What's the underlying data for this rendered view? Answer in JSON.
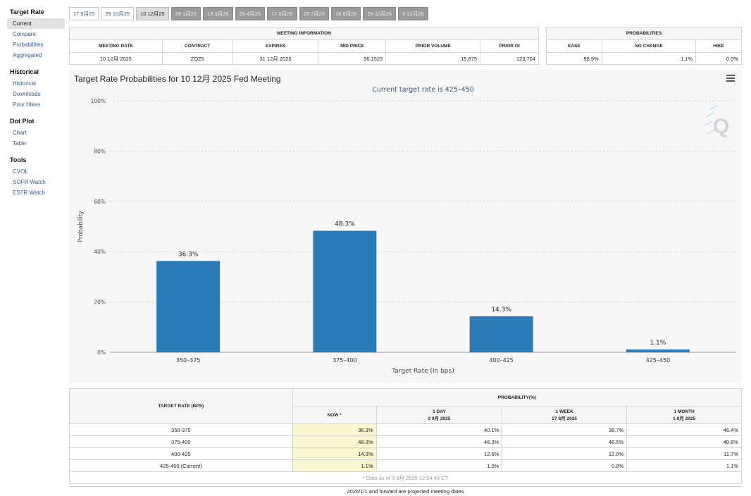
{
  "sidebar": {
    "groups": [
      {
        "title": "Target Rate",
        "items": [
          "Current",
          "Compare",
          "Probabilities",
          "Aggregated"
        ]
      },
      {
        "title": "Historical",
        "items": [
          "Historical",
          "Downloads",
          "Prior Hikes"
        ]
      },
      {
        "title": "Dot Plot",
        "items": [
          "Chart",
          "Table"
        ]
      },
      {
        "title": "Tools",
        "items": [
          "CVOL",
          "SOFR Watch",
          "ESTR Watch"
        ]
      }
    ]
  },
  "tabs": [
    {
      "label": "17 9月25",
      "state": "normal"
    },
    {
      "label": "29 10月25",
      "state": "normal"
    },
    {
      "label": "10 12月25",
      "state": "active"
    },
    {
      "label": "28 1月26",
      "state": "future"
    },
    {
      "label": "18 3月26",
      "state": "future"
    },
    {
      "label": "29 4月26",
      "state": "future"
    },
    {
      "label": "17 6月26",
      "state": "future"
    },
    {
      "label": "29 7月26",
      "state": "future"
    },
    {
      "label": "16 9月26",
      "state": "future"
    },
    {
      "label": "28 10月26",
      "state": "future"
    },
    {
      "label": "9 12月26",
      "state": "future"
    }
  ],
  "meeting_info": {
    "title": "MEETING INFORMATION",
    "headers": [
      "MEETING DATE",
      "CONTRACT",
      "EXPIRES",
      "MID PRICE",
      "PRIOR VOLUME",
      "PRIOR OI"
    ],
    "values": [
      "10 12月 2025",
      "ZQZ5",
      "31 12月 2025",
      "96.1525",
      "15,875",
      "123,704"
    ]
  },
  "probabilities": {
    "title": "PROBABILITIES",
    "headers": [
      "EASE",
      "NO CHANGE",
      "HIKE"
    ],
    "values": [
      "98.9%",
      "1.1%",
      "0.0%"
    ]
  },
  "chart": {
    "title": "Target Rate Probabilities for 10 12月 2025 Fed Meeting",
    "subtitle": "Current target rate is 425–450"
  },
  "chart_data": {
    "type": "bar",
    "title": "Target Rate Probabilities for 10 12月 2025 Fed Meeting",
    "subtitle": "Current target rate is 425–450",
    "categories": [
      "350–375",
      "375–400",
      "400–425",
      "425–450"
    ],
    "values": [
      36.3,
      48.3,
      14.3,
      1.1
    ],
    "data_labels": [
      "36.3%",
      "48.3%",
      "14.3%",
      "1.1%"
    ],
    "xlabel": "Target Rate (in bps)",
    "ylabel": "Probability",
    "ylim": [
      0,
      100
    ],
    "yticks": [
      "0%",
      "20%",
      "40%",
      "60%",
      "80%",
      "100%"
    ],
    "grid": true,
    "bar_color": "#2b7bb9"
  },
  "bottom_table": {
    "rate_header": "TARGET RATE (BPS)",
    "prob_header": "PROBABILITY(%)",
    "cols": [
      {
        "line1": "NOW *",
        "line2": ""
      },
      {
        "line1": "1 DAY",
        "line2": "2 9月 2025"
      },
      {
        "line1": "1 WEEK",
        "line2": "27 8月 2025"
      },
      {
        "line1": "1 MONTH",
        "line2": "1 8月 2025"
      }
    ],
    "rows": [
      {
        "rate": "350-375",
        "vals": [
          "36.3%",
          "40.1%",
          "38.7%",
          "46.4%"
        ]
      },
      {
        "rate": "375-400",
        "vals": [
          "48.3%",
          "46.3%",
          "48.5%",
          "40.8%"
        ]
      },
      {
        "rate": "400-425",
        "vals": [
          "14.3%",
          "12.6%",
          "12.0%",
          "11.7%"
        ]
      },
      {
        "rate": "425-450 (Current)",
        "vals": [
          "1.1%",
          "1.0%",
          "0.8%",
          "1.1%"
        ]
      }
    ],
    "note": "* Data as of 3 9月 2025 12:54:48 CT"
  },
  "footer": "2026/1/1 and forward are projected meeting dates"
}
